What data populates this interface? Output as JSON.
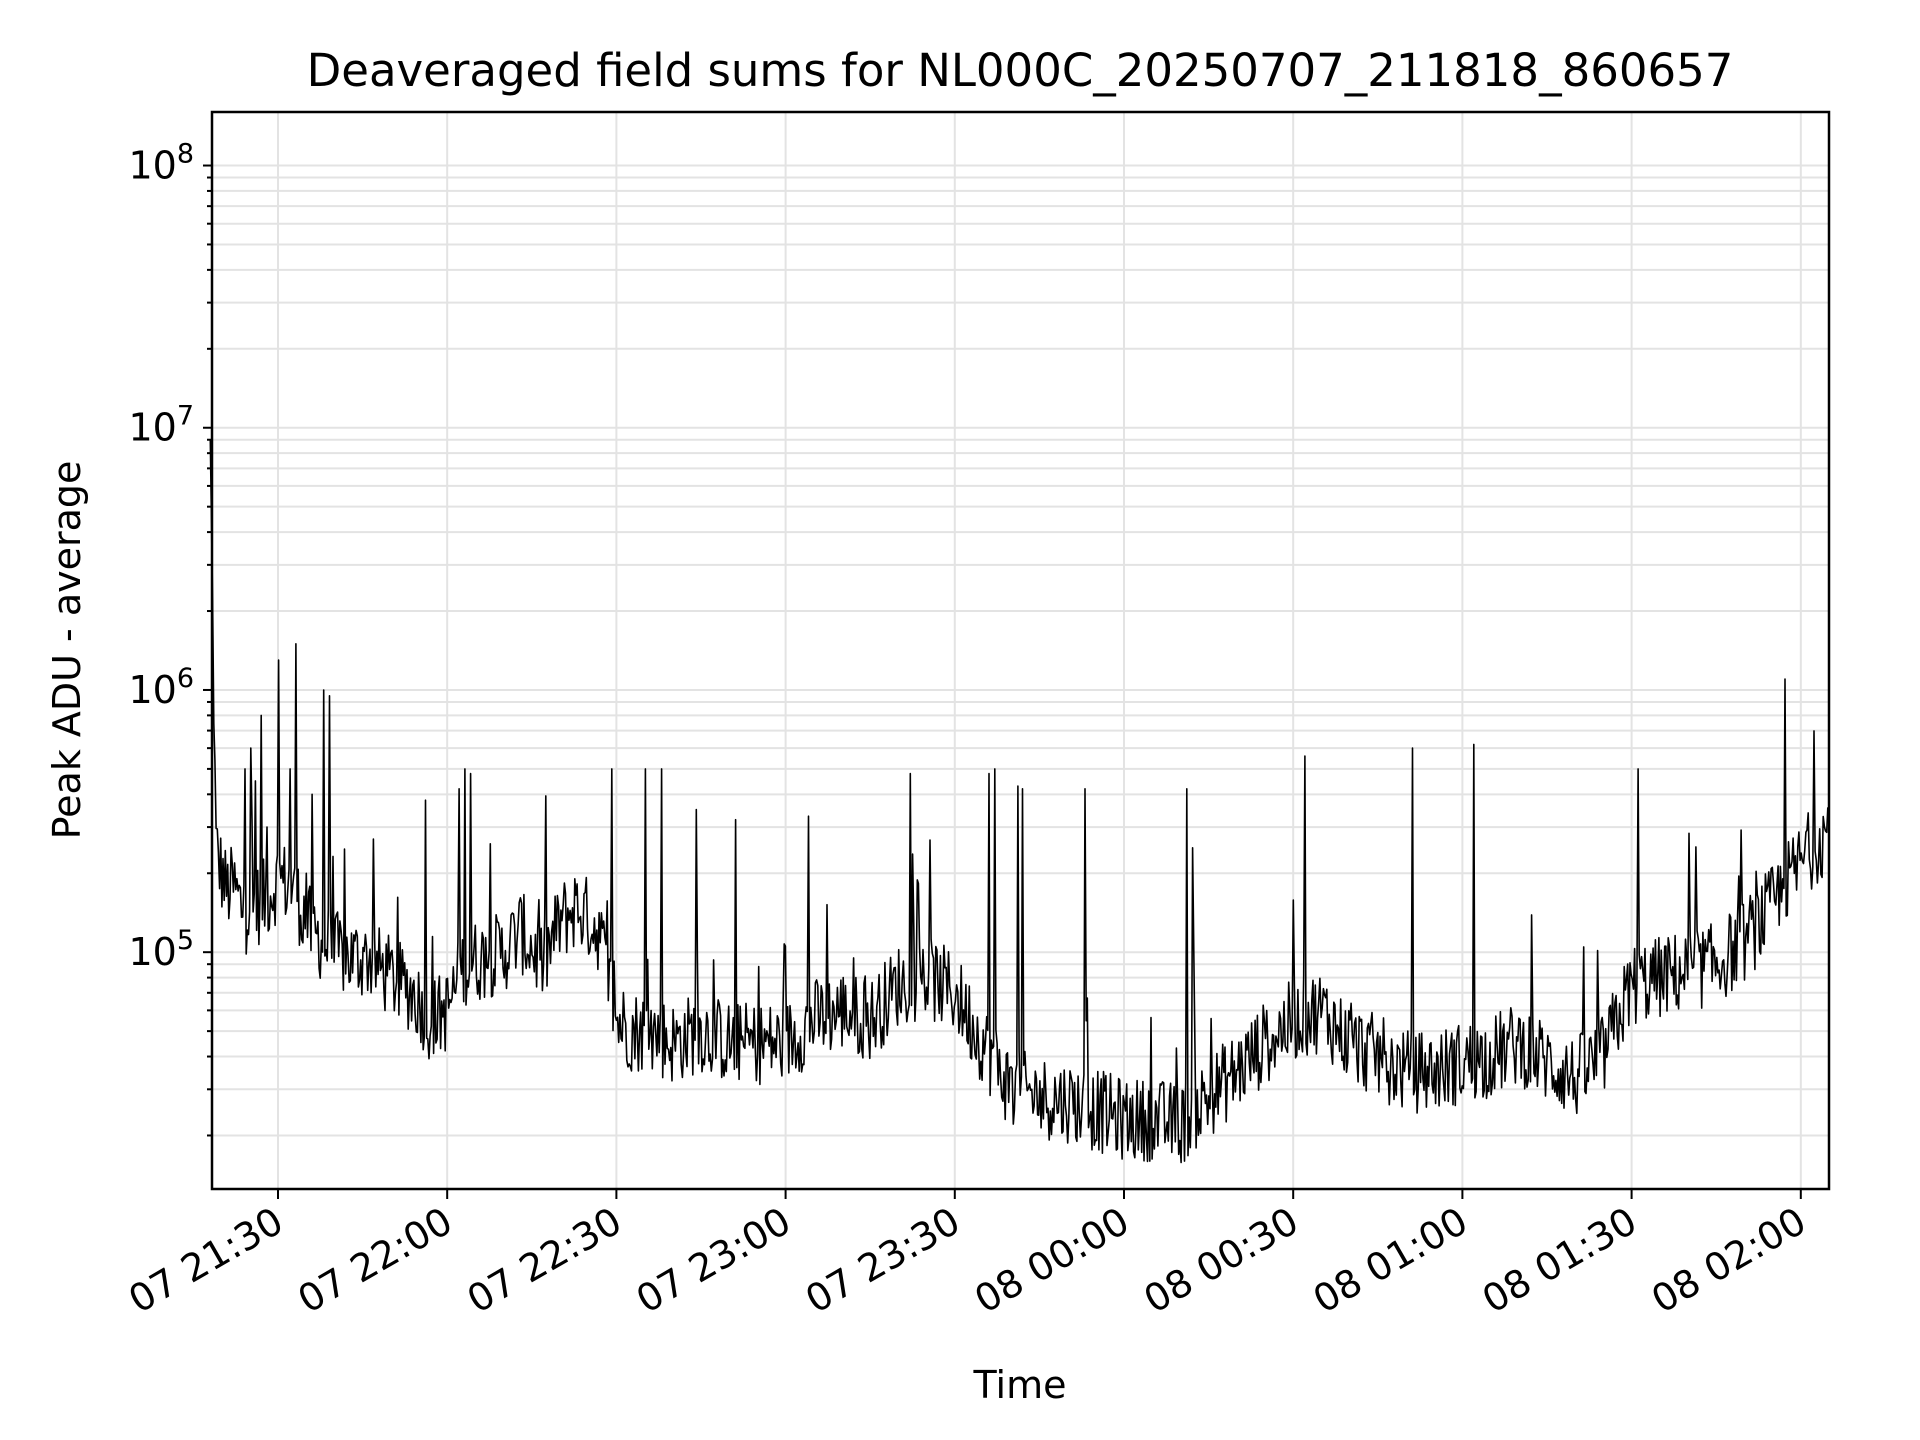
{
  "chart_data": {
    "type": "line",
    "title": "Deaveraged field sums for NL000C_20250707_211818_860657",
    "xlabel": "Time",
    "ylabel": "Peak ADU - average",
    "y_scale": "log",
    "ylim": [
      12500,
      160000000
    ],
    "xlim": [
      "2025-07-07 21:18:18",
      "2025-07-08 02:05:00"
    ],
    "grid": true,
    "x_ticks": [
      {
        "value": "2025-07-07 21:30",
        "label": "07 21:30"
      },
      {
        "value": "2025-07-07 22:00",
        "label": "07 22:00"
      },
      {
        "value": "2025-07-07 22:30",
        "label": "07 22:30"
      },
      {
        "value": "2025-07-07 23:00",
        "label": "07 23:00"
      },
      {
        "value": "2025-07-07 23:30",
        "label": "07 23:30"
      },
      {
        "value": "2025-07-08 00:00",
        "label": "08 00:00"
      },
      {
        "value": "2025-07-08 00:30",
        "label": "08 00:30"
      },
      {
        "value": "2025-07-08 01:00",
        "label": "08 01:00"
      },
      {
        "value": "2025-07-08 01:30",
        "label": "08 01:30"
      },
      {
        "value": "2025-07-08 02:00",
        "label": "08 02:00"
      }
    ],
    "y_ticks": [
      {
        "value": 100000,
        "base": "10",
        "exp": "5"
      },
      {
        "value": 1000000,
        "base": "10",
        "exp": "6"
      },
      {
        "value": 10000000,
        "base": "10",
        "exp": "7"
      },
      {
        "value": 100000000,
        "base": "10",
        "exp": "8"
      }
    ],
    "series": [
      {
        "color": "#000000",
        "x": [
          "2025-07-07 21:18",
          "2025-07-07 21:19",
          "2025-07-07 21:20",
          "2025-07-07 21:21",
          "2025-07-07 21:22",
          "2025-07-07 21:24",
          "2025-07-07 21:26",
          "2025-07-07 21:28",
          "2025-07-07 21:30",
          "2025-07-07 21:32",
          "2025-07-07 21:34",
          "2025-07-07 21:36",
          "2025-07-07 21:38",
          "2025-07-07 21:40",
          "2025-07-07 21:43",
          "2025-07-07 21:46",
          "2025-07-07 21:50",
          "2025-07-07 21:54",
          "2025-07-07 21:57",
          "2025-07-07 22:00",
          "2025-07-07 22:03",
          "2025-07-07 22:07",
          "2025-07-07 22:10",
          "2025-07-07 22:13",
          "2025-07-07 22:17",
          "2025-07-07 22:20",
          "2025-07-07 22:23",
          "2025-07-07 22:27",
          "2025-07-07 22:30",
          "2025-07-07 22:33",
          "2025-07-07 22:36",
          "2025-07-07 22:40",
          "2025-07-07 22:45",
          "2025-07-07 22:50",
          "2025-07-07 22:55",
          "2025-07-07 23:00",
          "2025-07-07 23:05",
          "2025-07-07 23:10",
          "2025-07-07 23:15",
          "2025-07-07 23:20",
          "2025-07-07 23:25",
          "2025-07-07 23:30",
          "2025-07-07 23:35",
          "2025-07-07 23:40",
          "2025-07-07 23:45",
          "2025-07-07 23:50",
          "2025-07-07 23:55",
          "2025-07-08 00:00",
          "2025-07-08 00:05",
          "2025-07-08 00:10",
          "2025-07-08 00:15",
          "2025-07-08 00:20",
          "2025-07-08 00:25",
          "2025-07-08 00:30",
          "2025-07-08 00:35",
          "2025-07-08 00:40",
          "2025-07-08 00:45",
          "2025-07-08 00:50",
          "2025-07-08 00:55",
          "2025-07-08 01:00",
          "2025-07-08 01:05",
          "2025-07-08 01:10",
          "2025-07-08 01:15",
          "2025-07-08 01:20",
          "2025-07-08 01:25",
          "2025-07-08 01:30",
          "2025-07-08 01:35",
          "2025-07-08 01:40",
          "2025-07-08 01:45",
          "2025-07-08 01:50",
          "2025-07-08 01:55",
          "2025-07-08 02:00",
          "2025-07-08 02:05"
        ],
        "y": [
          8000000,
          250000,
          200000,
          170000,
          180000,
          140000,
          150000,
          160000,
          190000,
          180000,
          150000,
          120000,
          110000,
          100000,
          95000,
          95000,
          80000,
          70000,
          55000,
          60000,
          90000,
          95000,
          100000,
          120000,
          90000,
          130000,
          150000,
          120000,
          55000,
          50000,
          50000,
          45000,
          50000,
          45000,
          45000,
          45000,
          55000,
          60000,
          55000,
          75000,
          80000,
          70000,
          45000,
          30000,
          28000,
          27000,
          25000,
          23000,
          23000,
          22000,
          28000,
          35000,
          45000,
          55000,
          60000,
          45000,
          40000,
          35000,
          35000,
          38000,
          40000,
          45000,
          38000,
          33000,
          40000,
          75000,
          80000,
          85000,
          90000,
          110000,
          150000,
          220000,
          300000
        ]
      },
      {
        "name": "",
        "color": "#000000",
        "role": "spikes",
        "x": [
          "2025-07-07 21:24",
          "2025-07-07 21:25",
          "2025-07-07 21:26",
          "2025-07-07 21:27",
          "2025-07-07 21:28",
          "2025-07-07 21:30",
          "2025-07-07 21:32",
          "2025-07-07 21:33",
          "2025-07-07 21:35",
          "2025-07-07 21:36",
          "2025-07-07 21:38",
          "2025-07-07 21:39",
          "2025-07-07 21:56",
          "2025-07-07 22:02",
          "2025-07-07 22:03",
          "2025-07-07 22:04",
          "2025-07-07 22:29",
          "2025-07-07 22:35",
          "2025-07-07 22:38",
          "2025-07-07 22:44",
          "2025-07-07 22:51",
          "2025-07-07 23:04",
          "2025-07-07 23:22",
          "2025-07-07 23:36",
          "2025-07-07 23:37",
          "2025-07-07 23:41",
          "2025-07-07 23:42",
          "2025-07-07 23:53",
          "2025-07-08 00:11",
          "2025-07-08 00:12",
          "2025-07-08 00:32",
          "2025-07-08 00:51",
          "2025-07-08 01:02",
          "2025-07-08 01:31",
          "2025-07-08 01:57"
        ],
        "y": [
          500000,
          600000,
          450000,
          800000,
          300000,
          1300000,
          500000,
          1500000,
          200000,
          400000,
          1000000,
          950000,
          380000,
          420000,
          500000,
          480000,
          500000,
          500000,
          500000,
          350000,
          320000,
          330000,
          480000,
          480000,
          500000,
          430000,
          420000,
          420000,
          420000,
          250000,
          560000,
          600000,
          620000,
          500000,
          1100000
        ]
      }
    ]
  }
}
